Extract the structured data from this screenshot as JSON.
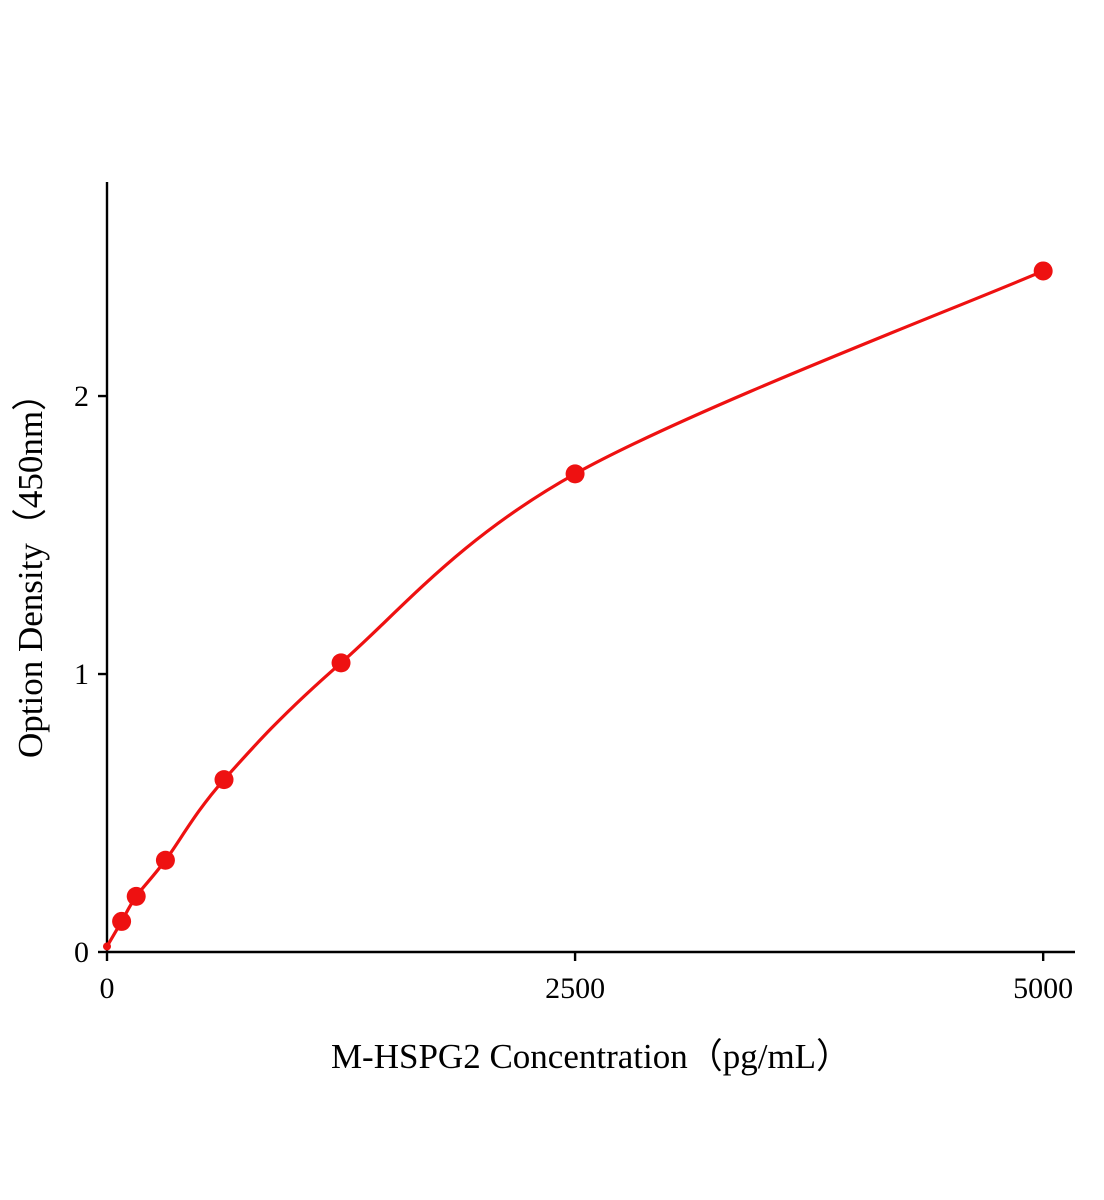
{
  "figure": {
    "background": "#ffffff"
  },
  "chart_data": {
    "type": "scatter",
    "subtype": "standard-curve-with-fitted-line",
    "title": "",
    "xlabel": "M-HSPG2 Concentration（pg/mL）",
    "ylabel": "Option Density（450nm）",
    "x": [
      0,
      78,
      156,
      312,
      625,
      1250,
      2500,
      5000
    ],
    "y": [
      0.02,
      0.11,
      0.2,
      0.33,
      0.62,
      1.04,
      1.72,
      2.45
    ],
    "x_ticks": [
      0,
      2500,
      5000
    ],
    "y_ticks": [
      0,
      1,
      2
    ],
    "xlim": [
      0,
      5170
    ],
    "ylim": [
      0,
      2.77
    ],
    "grid": false,
    "legend_position": "none",
    "line_color": "#ee1111",
    "marker_color": "#ee1111",
    "axis_color": "#000000"
  }
}
